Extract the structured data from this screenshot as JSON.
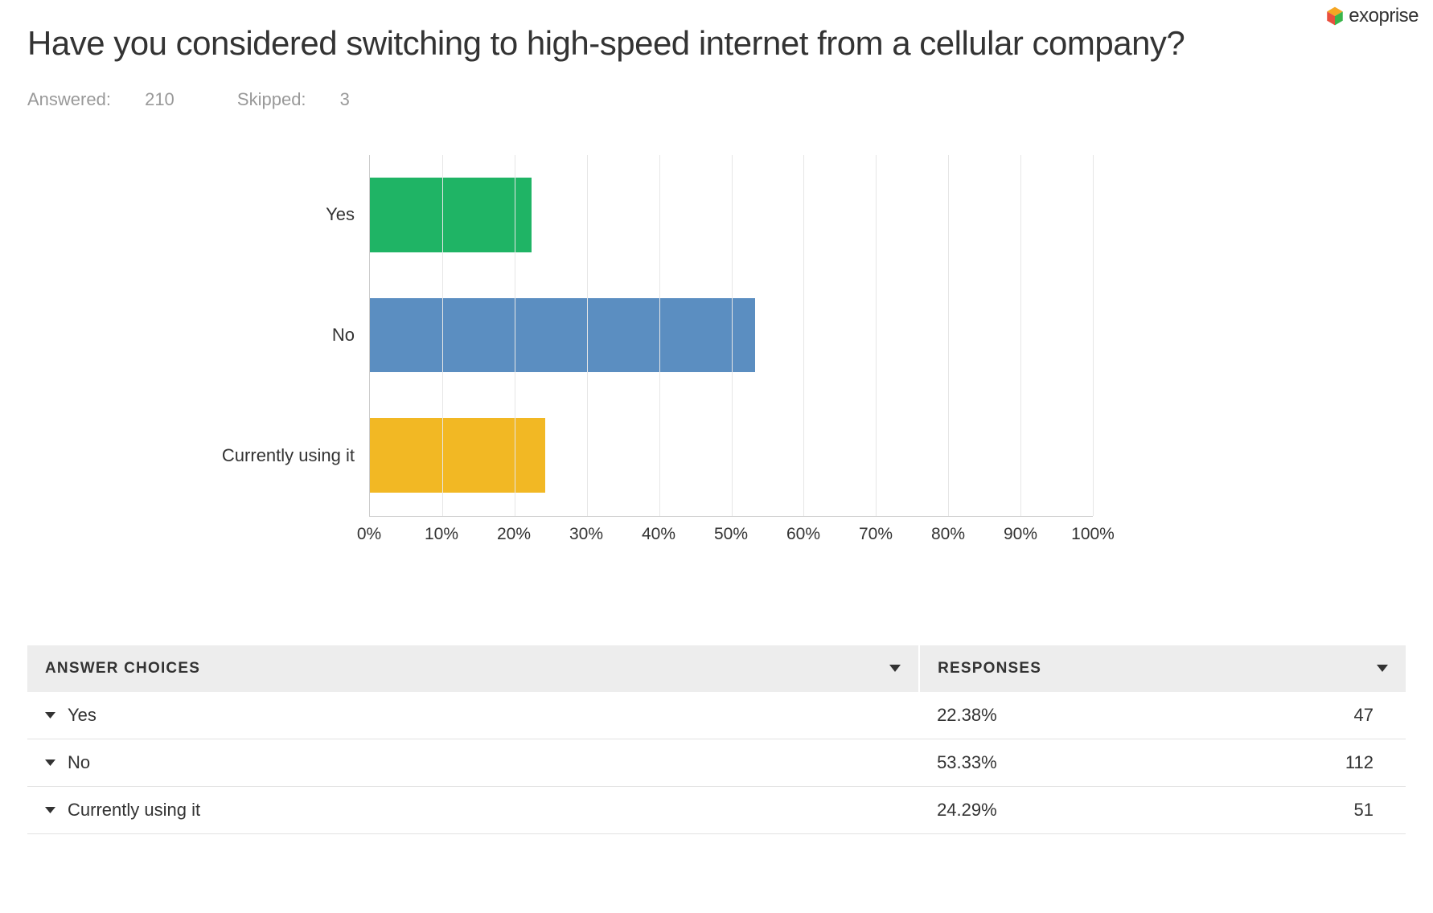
{
  "brand": {
    "name": "exoprise"
  },
  "question": {
    "title": "Have you considered switching to high-speed internet from a cellular company?",
    "answered_label": "Answered:",
    "answered_count": 210,
    "skipped_label": "Skipped:",
    "skipped_count": 3
  },
  "chart": {
    "type": "bar-horizontal",
    "xlim": [
      0,
      100
    ],
    "xtick_step": 10,
    "xtick_suffix": "%",
    "grid_color": "#e6e6e6",
    "axis_color": "#cccccc",
    "background_color": "#ffffff",
    "label_fontsize": 22,
    "tick_fontsize": 21,
    "bar_height_ratio": 0.62,
    "categories": [
      "Yes",
      "No",
      "Currently using it"
    ],
    "values": [
      22.38,
      53.33,
      24.29
    ],
    "bar_colors": [
      "#1fb465",
      "#5b8ec1",
      "#f2b824"
    ]
  },
  "table": {
    "headers": {
      "choices": "Answer Choices",
      "responses": "Responses"
    },
    "rows": [
      {
        "label": "Yes",
        "percent": "22.38%",
        "count": 47
      },
      {
        "label": "No",
        "percent": "53.33%",
        "count": 112
      },
      {
        "label": "Currently using it",
        "percent": "24.29%",
        "count": 51
      }
    ]
  }
}
